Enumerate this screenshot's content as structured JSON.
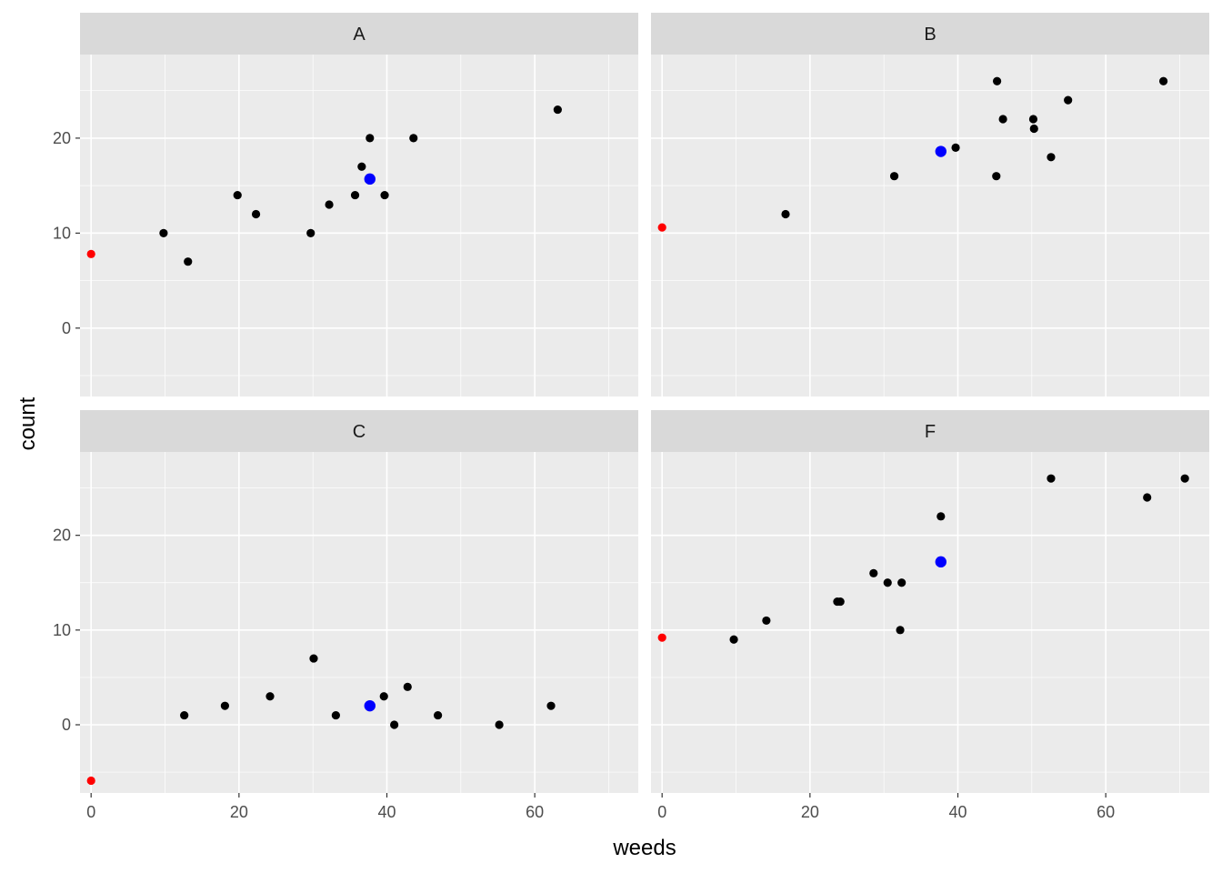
{
  "chart_data": {
    "type": "scatter",
    "layout": "facet_wrap 2x2",
    "xlabel": "weeds",
    "ylabel": "count",
    "xlim": [
      -1.5,
      74
    ],
    "ylim": [
      -7.2,
      28.8
    ],
    "x_ticks": [
      0,
      20,
      40,
      60
    ],
    "y_ticks": [
      0,
      10,
      20
    ],
    "colors": {
      "panel_bg": "#ebebeb",
      "grid_major": "#ffffff",
      "strip_bg": "#d9d9d9",
      "point": "#000000",
      "origin_point": "#ff0000",
      "mean_point": "#0000ff"
    },
    "facets": [
      {
        "label": "A",
        "points": [
          [
            9.8,
            10
          ],
          [
            13.1,
            7
          ],
          [
            19.8,
            14
          ],
          [
            22.3,
            12
          ],
          [
            29.7,
            10
          ],
          [
            32.2,
            13
          ],
          [
            35.7,
            14
          ],
          [
            36.6,
            17
          ],
          [
            37.7,
            20
          ],
          [
            39.7,
            14
          ],
          [
            43.6,
            20
          ],
          [
            63.1,
            23
          ]
        ],
        "origin_point": [
          0,
          7.8
        ],
        "mean_point": [
          37.7,
          15.7
        ]
      },
      {
        "label": "B",
        "points": [
          [
            16.7,
            12
          ],
          [
            31.4,
            16
          ],
          [
            39.7,
            19
          ],
          [
            45.2,
            16
          ],
          [
            45.3,
            26
          ],
          [
            46.1,
            22
          ],
          [
            50.2,
            22
          ],
          [
            50.3,
            21
          ],
          [
            52.6,
            18
          ],
          [
            54.9,
            24
          ],
          [
            67.8,
            26
          ]
        ],
        "origin_point": [
          0,
          10.6
        ],
        "mean_point": [
          37.7,
          18.6
        ]
      },
      {
        "label": "C",
        "points": [
          [
            12.6,
            1
          ],
          [
            18.1,
            2
          ],
          [
            24.2,
            3
          ],
          [
            30.1,
            7
          ],
          [
            33.1,
            1
          ],
          [
            39.6,
            3
          ],
          [
            41.0,
            0
          ],
          [
            42.8,
            4
          ],
          [
            46.9,
            1
          ],
          [
            55.2,
            0
          ],
          [
            62.2,
            2
          ]
        ],
        "origin_point": [
          0,
          -5.9
        ],
        "mean_point": [
          37.7,
          2.0
        ]
      },
      {
        "label": "F",
        "points": [
          [
            9.7,
            9
          ],
          [
            14.1,
            11
          ],
          [
            23.7,
            13
          ],
          [
            24.1,
            13
          ],
          [
            28.6,
            16
          ],
          [
            30.5,
            15
          ],
          [
            32.2,
            10
          ],
          [
            32.4,
            15
          ],
          [
            37.7,
            22
          ],
          [
            52.6,
            26
          ],
          [
            65.6,
            24
          ],
          [
            70.7,
            26
          ]
        ],
        "origin_point": [
          0,
          9.2
        ],
        "mean_point": [
          37.7,
          17.2
        ]
      }
    ]
  }
}
